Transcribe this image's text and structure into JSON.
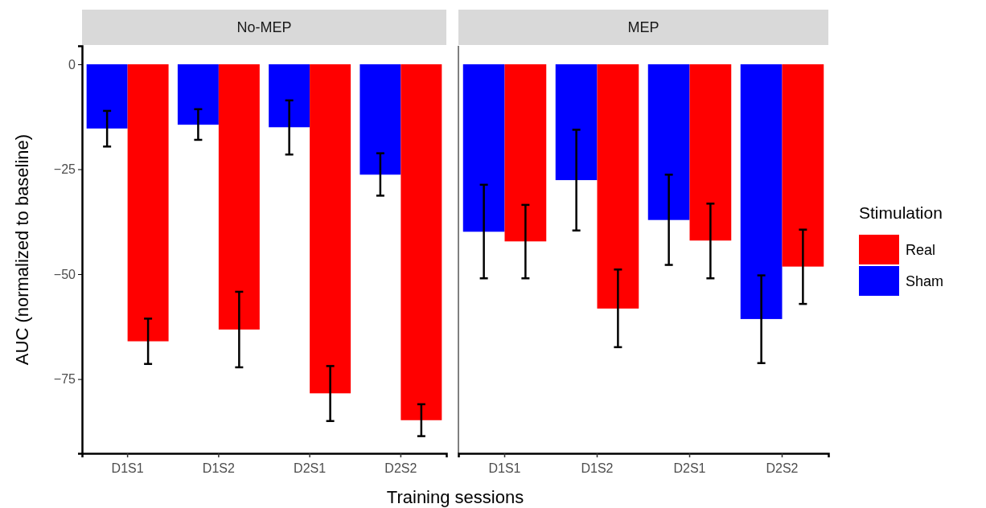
{
  "chart_data": [
    {
      "type": "bar",
      "title": "No-MEP",
      "xlabel": "Training sessions",
      "ylabel": "AUC (normalized to baseline)",
      "categories": [
        "D1S1",
        "D1S2",
        "D2S1",
        "D2S2"
      ],
      "ylim": [
        -92.7,
        4.4
      ],
      "yticks": [
        {
          "value": 0,
          "label": "0"
        },
        {
          "value": -25,
          "label": "−25"
        },
        {
          "value": -50,
          "label": "−50"
        },
        {
          "value": -75,
          "label": "−75"
        }
      ],
      "series": [
        {
          "color": "#0000ff",
          "values": [
            -15.3,
            -14.4,
            -15.0,
            -26.3
          ],
          "errors": [
            [
              -19.6,
              -11.1
            ],
            [
              -18.0,
              -10.7
            ],
            [
              -21.5,
              -8.6
            ],
            [
              -31.3,
              -21.2
            ]
          ]
        },
        {
          "color": "#ff0000",
          "values": [
            -66.0,
            -63.2,
            -78.4,
            -84.8
          ],
          "errors": [
            [
              -71.4,
              -60.6
            ],
            [
              -72.2,
              -54.2
            ],
            [
              -85.0,
              -71.9
            ],
            [
              -88.6,
              -81.0
            ]
          ]
        }
      ]
    },
    {
      "type": "bar",
      "title": "MEP",
      "categories": [
        "D1S1",
        "D1S2",
        "D2S1",
        "D2S2"
      ],
      "ylim": [
        -92.7,
        4.4
      ],
      "tick_labels": "x",
      "legend": "right",
      "legend_title": "Stimulation",
      "series": [
        {
          "name": "Sham",
          "color": "#0000ff",
          "values": [
            -39.9,
            -27.6,
            -37.1,
            -60.7
          ],
          "errors": [
            [
              -51.0,
              -28.7
            ],
            [
              -39.6,
              -15.6
            ],
            [
              -47.8,
              -26.3
            ],
            [
              -71.2,
              -50.3
            ]
          ]
        },
        {
          "name": "Real",
          "color": "#ff0000",
          "values": [
            -42.2,
            -58.2,
            -42.0,
            -48.2
          ],
          "errors": [
            [
              -51.0,
              -33.5
            ],
            [
              -67.4,
              -48.9
            ],
            [
              -51.0,
              -33.2
            ],
            [
              -57.1,
              -39.4
            ]
          ]
        }
      ]
    }
  ]
}
